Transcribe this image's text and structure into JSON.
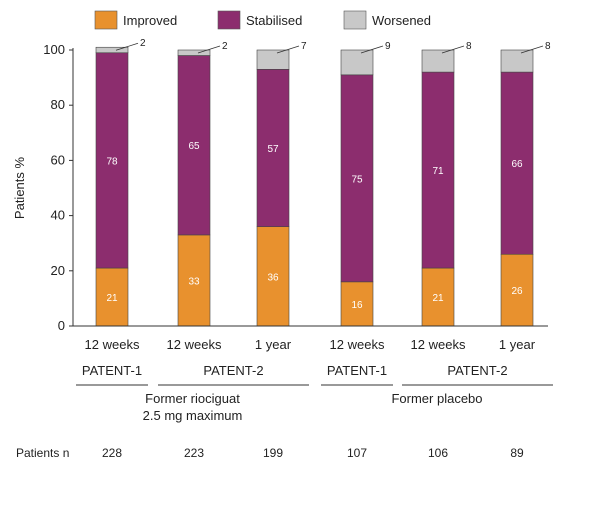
{
  "chart_data": {
    "type": "bar",
    "stacked": true,
    "ylabel": "Patients %",
    "ylim": [
      0,
      100
    ],
    "yticks": [
      0,
      20,
      40,
      60,
      80,
      100
    ],
    "legend_position": "top",
    "categories": [
      "12 weeks",
      "12 weeks",
      "1 year",
      "12 weeks",
      "12 weeks",
      "1 year"
    ],
    "series": [
      {
        "name": "Improved",
        "color": "#e8912e",
        "values": [
          21,
          33,
          36,
          16,
          21,
          26
        ]
      },
      {
        "name": "Stabilised",
        "color": "#8c2d6e",
        "values": [
          78,
          65,
          57,
          75,
          71,
          66
        ]
      },
      {
        "name": "Worsened",
        "color": "#c8c8c8",
        "values": [
          2,
          2,
          7,
          9,
          8,
          8
        ]
      }
    ],
    "studies": [
      {
        "label": "PATENT-1",
        "bars": [
          0
        ]
      },
      {
        "label": "PATENT-2",
        "bars": [
          1,
          2
        ]
      },
      {
        "label": "PATENT-1",
        "bars": [
          3
        ]
      },
      {
        "label": "PATENT-2",
        "bars": [
          4,
          5
        ]
      }
    ],
    "groups": [
      {
        "label": "Former riociguat 2.5 mg maximum",
        "lines": [
          "Former riociguat",
          "2.5 mg maximum"
        ],
        "bars": [
          0,
          1,
          2
        ]
      },
      {
        "label": "Former placebo",
        "lines": [
          "Former placebo"
        ],
        "bars": [
          3,
          4,
          5
        ]
      }
    ],
    "patients_n_label": "Patients n",
    "patients_n": [
      228,
      223,
      199,
      107,
      106,
      89
    ]
  }
}
